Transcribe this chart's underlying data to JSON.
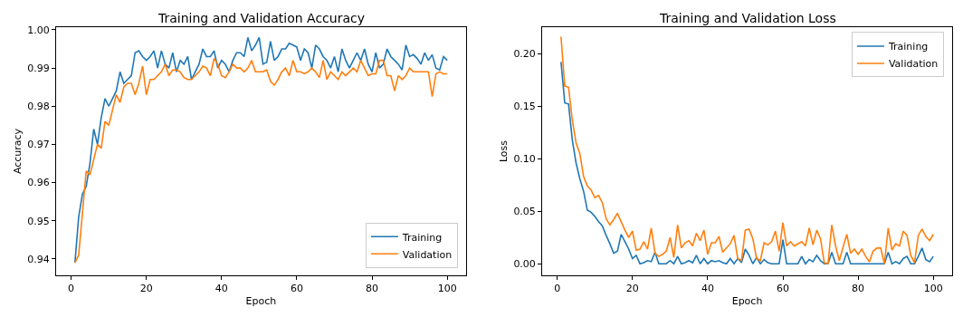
{
  "chart_data": [
    {
      "type": "line",
      "title": "Training and Validation Accuracy",
      "xlabel": "Epoch",
      "ylabel": "Accuracy",
      "legend": "bottom right",
      "marker": "none",
      "line_style": "solid",
      "x": [
        1,
        2,
        3,
        4,
        5,
        6,
        7,
        8,
        9,
        10,
        11,
        12,
        13,
        14,
        15,
        16,
        17,
        18,
        19,
        20,
        21,
        22,
        23,
        24,
        25,
        26,
        27,
        28,
        29,
        30,
        31,
        32,
        33,
        34,
        35,
        36,
        37,
        38,
        39,
        40,
        41,
        42,
        43,
        44,
        45,
        46,
        47,
        48,
        49,
        50,
        51,
        52,
        53,
        54,
        55,
        56,
        57,
        58,
        59,
        60,
        61,
        62,
        63,
        64,
        65,
        66,
        67,
        68,
        69,
        70,
        71,
        72,
        73,
        74,
        75,
        76,
        77,
        78,
        79,
        80,
        81,
        82,
        83,
        84,
        85,
        86,
        87,
        88,
        89,
        90,
        91,
        92,
        93,
        94,
        95,
        96,
        97,
        98,
        99,
        100
      ],
      "xlim": [
        -4,
        105
      ],
      "xticks": [
        0,
        20,
        40,
        60,
        80,
        100
      ],
      "ylim": [
        0.9357,
        1.0007
      ],
      "yticks": [
        {
          "value": 0.94,
          "label": "0.94"
        },
        {
          "value": 0.95,
          "label": "0.95"
        },
        {
          "value": 0.96,
          "label": "0.96"
        },
        {
          "value": 0.97,
          "label": "0.97"
        },
        {
          "value": 0.98,
          "label": "0.98"
        },
        {
          "value": 0.99,
          "label": "0.99"
        },
        {
          "value": 1.0,
          "label": "1.00"
        }
      ],
      "series": [
        {
          "name": "Training",
          "color": "#1f77b4",
          "values": [
            0.939,
            0.951,
            0.957,
            0.959,
            0.965,
            0.974,
            0.97,
            0.977,
            0.982,
            0.98,
            0.982,
            0.984,
            0.989,
            0.986,
            0.987,
            0.988,
            0.994,
            0.9945,
            0.993,
            0.992,
            0.993,
            0.9945,
            0.99,
            0.9945,
            0.991,
            0.99,
            0.994,
            0.989,
            0.992,
            0.991,
            0.993,
            0.987,
            0.989,
            0.991,
            0.995,
            0.993,
            0.993,
            0.9945,
            0.99,
            0.992,
            0.991,
            0.989,
            0.992,
            0.994,
            0.994,
            0.993,
            0.998,
            0.9945,
            0.996,
            0.998,
            0.991,
            0.9915,
            0.997,
            0.992,
            0.993,
            0.995,
            0.995,
            0.9965,
            0.996,
            0.9955,
            0.992,
            0.995,
            0.994,
            0.99,
            0.996,
            0.995,
            0.993,
            0.992,
            0.99,
            0.993,
            0.989,
            0.995,
            0.992,
            0.99,
            0.992,
            0.994,
            0.992,
            0.995,
            0.991,
            0.989,
            0.994,
            0.99,
            0.991,
            0.995,
            0.993,
            0.992,
            0.991,
            0.9895,
            0.996,
            0.993,
            0.9935,
            0.9925,
            0.991,
            0.994,
            0.992,
            0.9935,
            0.99,
            0.9895,
            0.993,
            0.992
          ]
        },
        {
          "name": "Validation",
          "color": "#ff7f0e",
          "values": [
            0.939,
            0.941,
            0.952,
            0.963,
            0.962,
            0.966,
            0.97,
            0.969,
            0.976,
            0.975,
            0.979,
            0.983,
            0.981,
            0.985,
            0.986,
            0.986,
            0.983,
            0.986,
            0.9905,
            0.983,
            0.987,
            0.987,
            0.988,
            0.989,
            0.991,
            0.988,
            0.9895,
            0.9895,
            0.989,
            0.9875,
            0.987,
            0.987,
            0.988,
            0.989,
            0.9905,
            0.99,
            0.988,
            0.9925,
            0.991,
            0.988,
            0.9875,
            0.989,
            0.991,
            0.99,
            0.99,
            0.989,
            0.99,
            0.992,
            0.989,
            0.989,
            0.989,
            0.9895,
            0.9865,
            0.9855,
            0.987,
            0.989,
            0.99,
            0.988,
            0.992,
            0.989,
            0.989,
            0.9885,
            0.989,
            0.99,
            0.989,
            0.9875,
            0.992,
            0.987,
            0.989,
            0.988,
            0.987,
            0.989,
            0.988,
            0.989,
            0.99,
            0.989,
            0.992,
            0.99,
            0.988,
            0.9885,
            0.9885,
            0.992,
            0.992,
            0.988,
            0.988,
            0.984,
            0.988,
            0.987,
            0.988,
            0.99,
            0.989,
            0.989,
            0.989,
            0.989,
            0.989,
            0.9825,
            0.9885,
            0.989,
            0.9885,
            0.9885
          ]
        }
      ]
    },
    {
      "type": "line",
      "title": "Training and Validation Loss",
      "xlabel": "Epoch",
      "ylabel": "Loss",
      "legend": "top right",
      "marker": "none",
      "line_style": "solid",
      "x": [
        1,
        2,
        3,
        4,
        5,
        6,
        7,
        8,
        9,
        10,
        11,
        12,
        13,
        14,
        15,
        16,
        17,
        18,
        19,
        20,
        21,
        22,
        23,
        24,
        25,
        26,
        27,
        28,
        29,
        30,
        31,
        32,
        33,
        34,
        35,
        36,
        37,
        38,
        39,
        40,
        41,
        42,
        43,
        44,
        45,
        46,
        47,
        48,
        49,
        50,
        51,
        52,
        53,
        54,
        55,
        56,
        57,
        58,
        59,
        60,
        61,
        62,
        63,
        64,
        65,
        66,
        67,
        68,
        69,
        70,
        71,
        72,
        73,
        74,
        75,
        76,
        77,
        78,
        79,
        80,
        81,
        82,
        83,
        84,
        85,
        86,
        87,
        88,
        89,
        90,
        91,
        92,
        93,
        94,
        95,
        96,
        97,
        98,
        99,
        100
      ],
      "xlim": [
        -4,
        105
      ],
      "xticks": [
        0,
        20,
        40,
        60,
        80,
        100
      ],
      "ylim": [
        -0.011,
        0.2251
      ],
      "yticks": [
        {
          "value": 0,
          "label": "0.00"
        },
        {
          "value": 0.05,
          "label": "0.05"
        },
        {
          "value": 0.1,
          "label": "0.10"
        },
        {
          "value": 0.15,
          "label": "0.15"
        },
        {
          "value": 0.2,
          "label": "0.20"
        }
      ],
      "series": [
        {
          "name": "Training",
          "color": "#1f77b4",
          "values": [
            0.192,
            0.153,
            0.152,
            0.118,
            0.096,
            0.081,
            0.069,
            0.051,
            0.049,
            0.045,
            0.04,
            0.036,
            0.027,
            0.019,
            0.01,
            0.012,
            0.028,
            0.021,
            0.014,
            0.005,
            0.008,
            0.0,
            0.001,
            0.003,
            0.002,
            0.011,
            0.0,
            0.0,
            0.0,
            0.003,
            0.0,
            0.007,
            0.0,
            0.001,
            0.003,
            0.001,
            0.008,
            0.0,
            0.005,
            0.0,
            0.003,
            0.002,
            0.003,
            0.001,
            0.0,
            0.005,
            0.0,
            0.005,
            0.001,
            0.014,
            0.008,
            0.0,
            0.006,
            0.0,
            0.004,
            0.001,
            0.0,
            0.0,
            0.0,
            0.023,
            0.0,
            0.0,
            0.0,
            0.0,
            0.007,
            0.0,
            0.004,
            0.002,
            0.008,
            0.003,
            0.0,
            0.0,
            0.011,
            0.0,
            0.0,
            0.0,
            0.011,
            0.0,
            0.0,
            0.0,
            0.0,
            0.0,
            0.0,
            0.0,
            0.0,
            0.0,
            0.0,
            0.011,
            0.0,
            0.002,
            0.0,
            0.005,
            0.007,
            0.0,
            0.0,
            0.007,
            0.015,
            0.004,
            0.002,
            0.007
          ]
        },
        {
          "name": "Validation",
          "color": "#ff7f0e",
          "values": [
            0.216,
            0.169,
            0.168,
            0.137,
            0.115,
            0.105,
            0.083,
            0.074,
            0.07,
            0.063,
            0.065,
            0.058,
            0.043,
            0.037,
            0.042,
            0.048,
            0.04,
            0.032,
            0.025,
            0.031,
            0.013,
            0.014,
            0.021,
            0.014,
            0.034,
            0.01,
            0.007,
            0.009,
            0.012,
            0.025,
            0.006,
            0.037,
            0.015,
            0.02,
            0.022,
            0.017,
            0.029,
            0.022,
            0.032,
            0.009,
            0.02,
            0.02,
            0.026,
            0.011,
            0.015,
            0.019,
            0.027,
            0.005,
            0.003,
            0.032,
            0.033,
            0.024,
            0.005,
            0.003,
            0.02,
            0.018,
            0.021,
            0.031,
            0.012,
            0.039,
            0.017,
            0.021,
            0.017,
            0.019,
            0.021,
            0.017,
            0.034,
            0.018,
            0.032,
            0.024,
            0.001,
            0.0,
            0.037,
            0.017,
            0.003,
            0.016,
            0.028,
            0.01,
            0.014,
            0.009,
            0.014,
            0.007,
            0.002,
            0.012,
            0.015,
            0.015,
            0.0,
            0.034,
            0.013,
            0.019,
            0.017,
            0.031,
            0.027,
            0.008,
            0.001,
            0.027,
            0.033,
            0.026,
            0.022,
            0.028
          ]
        }
      ]
    }
  ]
}
